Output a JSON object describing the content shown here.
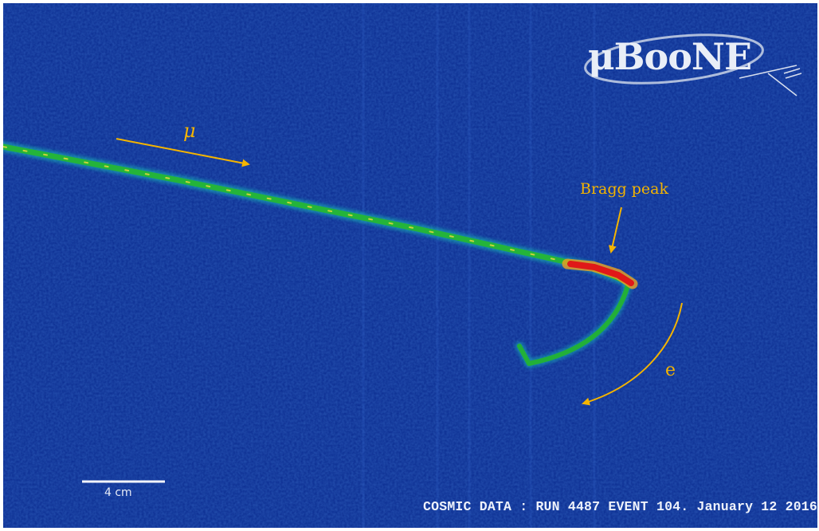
{
  "logo": {
    "text": "μBooNE"
  },
  "annotations": {
    "muon": "μ",
    "bragg_peak": "Bragg peak",
    "electron": "e"
  },
  "scale_bar": {
    "label": "4 cm"
  },
  "caption": "COSMIC DATA : RUN 4487 EVENT 104. January 12 2016",
  "colors": {
    "background": "#0a2a8c",
    "track": "#1fb83a",
    "bragg": "#e01818",
    "annotation": "#f4b400"
  }
}
